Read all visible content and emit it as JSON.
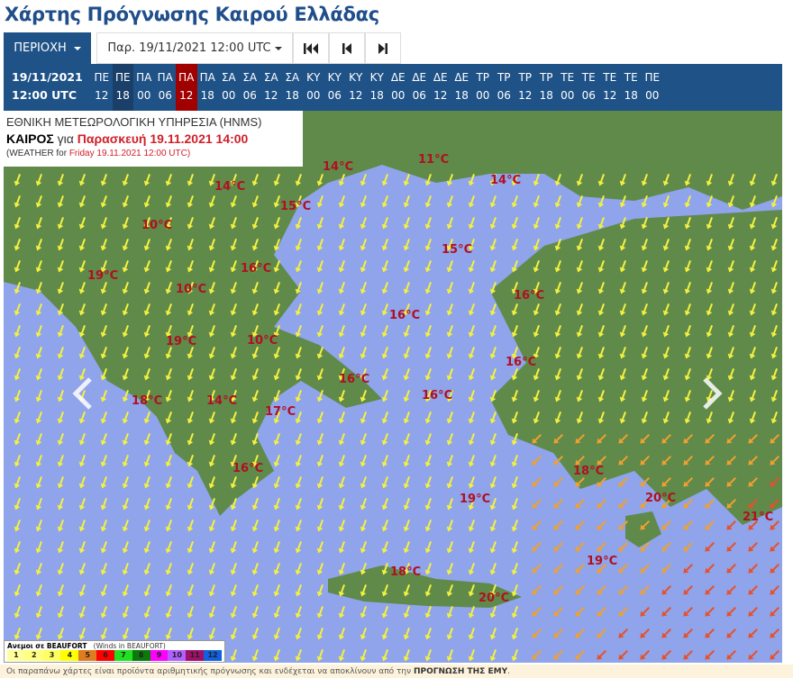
{
  "page_title": "Χάρτης Πρόγνωσης Καιρού Ελλάδας",
  "toolbar": {
    "region_label": "ΠΕΡΙΟΧΗ",
    "date_select": "Παρ. 19/11/2021 12:00 UTC",
    "first_icon": "skip-first-icon",
    "prev_icon": "step-back-icon",
    "next_icon": "step-forward-icon"
  },
  "timebar": {
    "date": "19/11/2021",
    "time": "12:00 UTC",
    "selected_index": 4,
    "slots": [
      [
        "ΠΕ",
        "12"
      ],
      [
        "ΠΕ",
        "18"
      ],
      [
        "ΠΑ",
        "00"
      ],
      [
        "ΠΑ",
        "06"
      ],
      [
        "ΠΑ",
        "12"
      ],
      [
        "ΠΑ",
        "18"
      ],
      [
        "ΣΑ",
        "00"
      ],
      [
        "ΣΑ",
        "06"
      ],
      [
        "ΣΑ",
        "12"
      ],
      [
        "ΣΑ",
        "18"
      ],
      [
        "ΚΥ",
        "00"
      ],
      [
        "ΚΥ",
        "06"
      ],
      [
        "ΚΥ",
        "12"
      ],
      [
        "ΚΥ",
        "18"
      ],
      [
        "ΔΕ",
        "00"
      ],
      [
        "ΔΕ",
        "06"
      ],
      [
        "ΔΕ",
        "12"
      ],
      [
        "ΔΕ",
        "18"
      ],
      [
        "ΤΡ",
        "00"
      ],
      [
        "ΤΡ",
        "06"
      ],
      [
        "ΤΡ",
        "12"
      ],
      [
        "ΤΡ",
        "18"
      ],
      [
        "ΤΕ",
        "00"
      ],
      [
        "ΤΕ",
        "06"
      ],
      [
        "ΤΕ",
        "12"
      ],
      [
        "ΤΕ",
        "18"
      ],
      [
        "ΠΕ",
        "00"
      ]
    ]
  },
  "map_header": {
    "line1": "ΕΘΝΙΚΗ ΜΕΤΕΩΡΟΛΟΓΙΚΗ ΥΠΗΡΕΣΙΑ (HNMS)",
    "kairos": "ΚΑΙΡΟΣ",
    "gia": "για",
    "local_time": "Παρασκευή 19.11.2021 14:00",
    "weather_for": "(WEATHER for",
    "utc_time": "Friday 19.11.2021 12:00 UTC)"
  },
  "temperatures": [
    "14°C",
    "11°C",
    "14°C",
    "14°C",
    "15°C",
    "10°C",
    "15°C",
    "16°C",
    "19°C",
    "10°C",
    "16°C",
    "16°C",
    "19°C",
    "10°C",
    "16°C",
    "16°C",
    "18°C",
    "14°C",
    "16°C",
    "17°C",
    "18°C",
    "16°C",
    "19°C",
    "20°C",
    "21°C",
    "19°C",
    "18°C",
    "20°C"
  ],
  "nav": {
    "prev_icon": "chevron-left-icon",
    "next_icon": "chevron-right-icon"
  },
  "legend": {
    "title": "Ανεμοι σε BEAUFORT",
    "subtitle": "(Winds in BEAUFORT)",
    "scale": [
      {
        "v": "1",
        "c": "#ffff99"
      },
      {
        "v": "2",
        "c": "#ffff80"
      },
      {
        "v": "3",
        "c": "#ffff60"
      },
      {
        "v": "4",
        "c": "#ffff00"
      },
      {
        "v": "5",
        "c": "#e07c20"
      },
      {
        "v": "6",
        "c": "#ff0000"
      },
      {
        "v": "7",
        "c": "#20e020"
      },
      {
        "v": "8",
        "c": "#0a7a0a"
      },
      {
        "v": "9",
        "c": "#ff00ff"
      },
      {
        "v": "10",
        "c": "#b060ff"
      },
      {
        "v": "11",
        "c": "#a0106a"
      },
      {
        "v": "12",
        "c": "#1060e0"
      }
    ]
  },
  "footer": {
    "text": "Οι παραπάνω χάρτες είναι προϊόντα αριθμητικής πρόγνωσης και ενδέχεται να αποκλίνουν από την ",
    "bold": "ΠΡΟΓΝΩΣΗ ΤΗΣ ΕΜΥ",
    "end": "."
  },
  "colors": {
    "primary": "#1f5287",
    "selected": "#a00000",
    "sea": "#8fa4ea",
    "land": "#5f8a4a",
    "temp": "#b01020"
  }
}
